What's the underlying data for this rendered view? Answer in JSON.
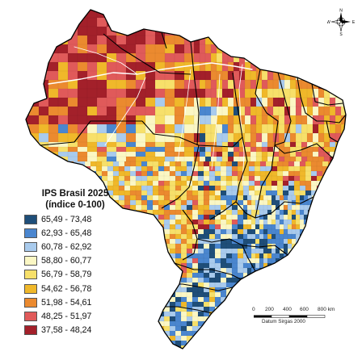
{
  "legend": {
    "title": "IPS Brasil 2025",
    "subtitle": "(índice 0-100)",
    "classes": [
      {
        "label": "65,49 - 73,48",
        "color": "#1f4e79"
      },
      {
        "label": "62,93 - 65,48",
        "color": "#4a86cf"
      },
      {
        "label": "60,78 - 62,92",
        "color": "#a9cbed"
      },
      {
        "label": "58,80 - 60,77",
        "color": "#fbf7c4"
      },
      {
        "label": "56,79 - 58,79",
        "color": "#f7e06a"
      },
      {
        "label": "54,62 - 56,78",
        "color": "#f0b82a"
      },
      {
        "label": "51,98 - 54,61",
        "color": "#eb8a2f"
      },
      {
        "label": "48,25 - 51,97",
        "color": "#e05a5a"
      },
      {
        "label": "37,58 - 48,24",
        "color": "#a3202a"
      }
    ]
  },
  "scale": {
    "ticks": [
      "0",
      "200",
      "400",
      "600",
      "800 km"
    ],
    "datum": "Datum Sirgas 2000"
  },
  "compass": {
    "n": "N",
    "s": "S",
    "e": "E",
    "w": "W"
  }
}
